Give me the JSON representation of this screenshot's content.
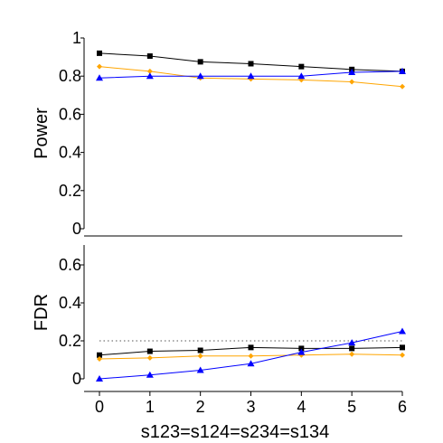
{
  "chart_data": [
    {
      "type": "line",
      "panel": "top",
      "title": "",
      "xlabel": "",
      "ylabel": "Power",
      "x": [
        0,
        1,
        2,
        3,
        4,
        5,
        6
      ],
      "ylim": [
        0,
        1
      ],
      "yticks": [
        "0",
        "0.2",
        "0.4",
        "0.6",
        "0.8",
        "1"
      ],
      "grid": false,
      "legend": "none",
      "series": [
        {
          "color": "#000000",
          "marker": "square",
          "values": [
            0.92,
            0.905,
            0.875,
            0.865,
            0.85,
            0.835,
            0.825
          ]
        },
        {
          "color": "#FFA500",
          "marker": "diamond",
          "values": [
            0.85,
            0.825,
            0.79,
            0.785,
            0.78,
            0.77,
            0.745
          ]
        },
        {
          "color": "#0000FF",
          "marker": "triangle",
          "values": [
            0.79,
            0.8,
            0.8,
            0.8,
            0.8,
            0.82,
            0.825
          ]
        }
      ]
    },
    {
      "type": "line",
      "panel": "bottom",
      "title": "",
      "xlabel": "s123=s124=s234=s134",
      "ylabel": "FDR",
      "x": [
        0,
        1,
        2,
        3,
        4,
        5,
        6
      ],
      "xticks": [
        "0",
        "1",
        "2",
        "3",
        "4",
        "5",
        "6"
      ],
      "ylim": [
        0,
        0.7
      ],
      "yticks": [
        "0",
        "0.2",
        "0.4",
        "0.6"
      ],
      "reference_line": {
        "y": 0.2,
        "style": "dotted",
        "color": "#555555"
      },
      "grid": false,
      "legend": "none",
      "series": [
        {
          "color": "#000000",
          "marker": "square",
          "values": [
            0.125,
            0.145,
            0.15,
            0.165,
            0.16,
            0.16,
            0.165
          ]
        },
        {
          "color": "#FFA500",
          "marker": "diamond",
          "values": [
            0.105,
            0.11,
            0.12,
            0.12,
            0.125,
            0.13,
            0.125
          ]
        },
        {
          "color": "#0000FF",
          "marker": "triangle",
          "values": [
            0.0,
            0.02,
            0.045,
            0.08,
            0.14,
            0.19,
            0.25
          ]
        }
      ]
    }
  ]
}
